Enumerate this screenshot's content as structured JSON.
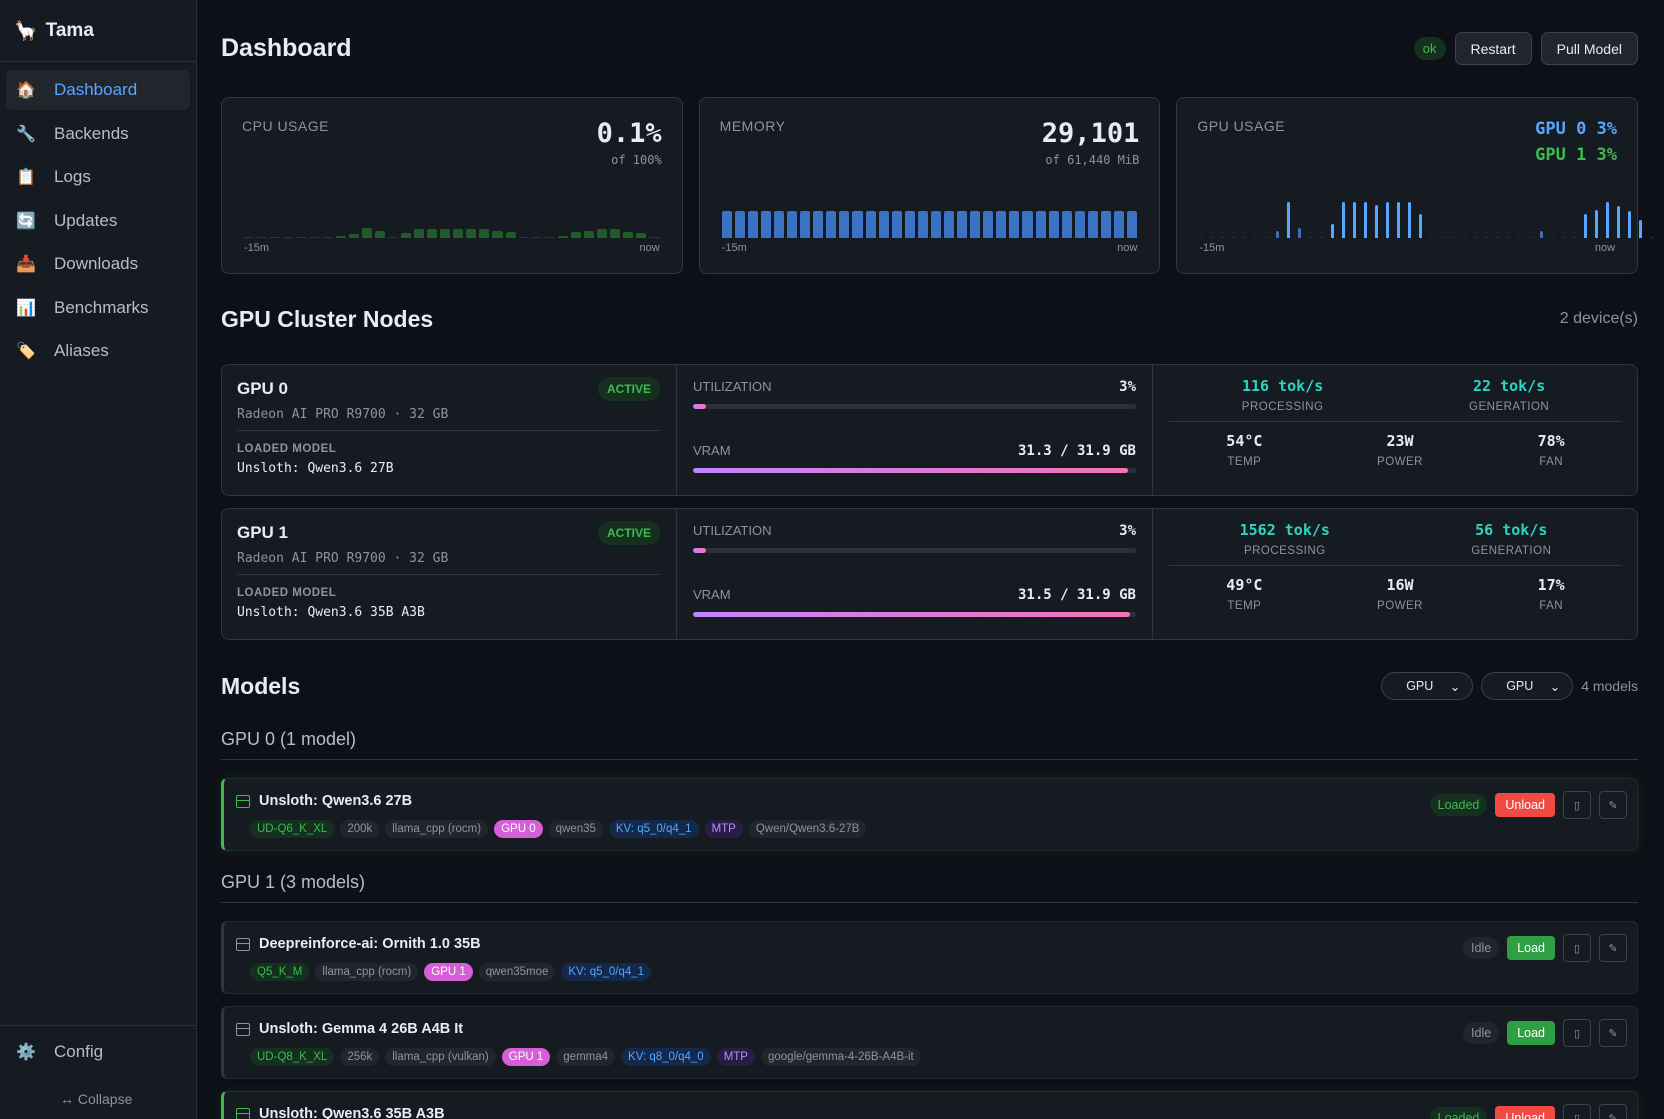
{
  "app": {
    "name": "Tama",
    "logo_icon": "llama-icon"
  },
  "sidebar": {
    "items": [
      {
        "label": "Dashboard",
        "icon": "🏠",
        "active": true
      },
      {
        "label": "Backends",
        "icon": "🔧"
      },
      {
        "label": "Logs",
        "icon": "📋"
      },
      {
        "label": "Updates",
        "icon": "🔄"
      },
      {
        "label": "Downloads",
        "icon": "📥"
      },
      {
        "label": "Benchmarks",
        "icon": "📊"
      },
      {
        "label": "Aliases",
        "icon": "🏷️"
      }
    ],
    "config": {
      "label": "Config",
      "icon": "⚙️"
    },
    "collapse_label": "↔ Collapse"
  },
  "header": {
    "title": "Dashboard",
    "status": "ok",
    "restart_label": "Restart",
    "pull_label": "Pull Model"
  },
  "stats": {
    "cpu": {
      "label": "CPU USAGE",
      "value": "0.1%",
      "sub": "of 100%",
      "axis_start": "-15m",
      "axis_end": "now",
      "history": [
        1,
        1,
        1,
        1,
        1,
        1,
        1,
        2,
        3,
        8,
        6,
        1,
        4,
        7,
        7,
        7,
        7,
        7,
        7,
        6,
        5,
        1,
        1,
        1,
        2,
        5,
        6,
        7,
        7,
        5,
        4,
        1
      ]
    },
    "memory": {
      "label": "MEMORY",
      "value": "29,101",
      "sub": "of 61,440 MiB",
      "axis_start": "-15m",
      "axis_end": "now",
      "history": [
        47,
        47,
        47,
        47,
        47,
        47,
        47,
        47,
        47,
        47,
        47,
        47,
        47,
        47,
        47,
        47,
        47,
        47,
        47,
        47,
        47,
        47,
        47,
        47,
        47,
        47,
        47,
        47,
        47,
        47,
        47,
        47
      ]
    },
    "gpu": {
      "label": "GPU USAGE",
      "gpu0": "GPU 0 3%",
      "gpu1": "GPU 1 3%",
      "axis_start": "-15m",
      "axis_end": "now",
      "history": [
        1,
        1,
        1,
        1,
        1,
        1,
        1,
        7,
        38,
        11,
        1,
        1,
        15,
        38,
        38,
        38,
        35,
        38,
        38,
        38,
        25,
        1,
        1,
        1,
        1,
        1,
        1,
        1,
        1,
        1,
        1,
        7,
        1,
        1,
        1,
        25,
        30,
        38,
        34,
        28,
        19,
        1
      ]
    }
  },
  "cluster": {
    "title": "GPU Cluster Nodes",
    "count": "2 device(s)",
    "nodes": [
      {
        "name": "GPU 0",
        "status": "ACTIVE",
        "device": "Radeon AI PRO R9700 · 32 GB",
        "loaded_label": "LOADED MODEL",
        "model": "Unsloth: Qwen3.6 27B",
        "util_label": "UTILIZATION",
        "util": "3%",
        "util_frac": 0.03,
        "vram_label": "VRAM",
        "vram": "31.3 / 31.9 GB",
        "vram_frac": 0.981,
        "processing": "116 tok/s",
        "processing_label": "PROCESSING",
        "generation": "22 tok/s",
        "generation_label": "GENERATION",
        "temp": "54°C",
        "temp_label": "TEMP",
        "power": "23W",
        "power_label": "POWER",
        "fan": "78%",
        "fan_label": "FAN"
      },
      {
        "name": "GPU 1",
        "status": "ACTIVE",
        "device": "Radeon AI PRO R9700 · 32 GB",
        "loaded_label": "LOADED MODEL",
        "model": "Unsloth: Qwen3.6 35B A3B",
        "util_label": "UTILIZATION",
        "util": "3%",
        "util_frac": 0.03,
        "vram_label": "VRAM",
        "vram": "31.5 / 31.9 GB",
        "vram_frac": 0.987,
        "processing": "1562 tok/s",
        "processing_label": "PROCESSING",
        "generation": "56 tok/s",
        "generation_label": "GENERATION",
        "temp": "49°C",
        "temp_label": "TEMP",
        "power": "16W",
        "power_label": "POWER",
        "fan": "17%",
        "fan_label": "FAN"
      }
    ]
  },
  "models": {
    "title": "Models",
    "filter1": "GPU",
    "filter2": "GPU",
    "count": "4 models",
    "groups": [
      {
        "title": "GPU 0 (1 model)",
        "items": [
          {
            "name": "Unsloth: Qwen3.6 27B",
            "state": "Loaded",
            "action": "Unload",
            "tags": [
              {
                "t": "UD-Q6_K_XL",
                "k": "green"
              },
              {
                "t": "200k",
                "k": ""
              },
              {
                "t": "llama_cpp (rocm)",
                "k": ""
              },
              {
                "t": "GPU 0",
                "k": "pink"
              },
              {
                "t": "qwen35",
                "k": ""
              },
              {
                "t": "KV: q5_0/q4_1",
                "k": "blue"
              },
              {
                "t": "MTP",
                "k": "purple"
              },
              {
                "t": "Qwen/Qwen3.6-27B",
                "k": ""
              }
            ]
          }
        ]
      },
      {
        "title": "GPU 1 (3 models)",
        "items": [
          {
            "name": "Deepreinforce-ai: Ornith 1.0 35B",
            "state": "Idle",
            "action": "Load",
            "tags": [
              {
                "t": "Q5_K_M",
                "k": "green"
              },
              {
                "t": "llama_cpp (rocm)",
                "k": ""
              },
              {
                "t": "GPU 1",
                "k": "pink"
              },
              {
                "t": "qwen35moe",
                "k": ""
              },
              {
                "t": "KV: q5_0/q4_1",
                "k": "blue"
              }
            ]
          },
          {
            "name": "Unsloth: Gemma 4 26B A4B It",
            "state": "Idle",
            "action": "Load",
            "tags": [
              {
                "t": "UD-Q8_K_XL",
                "k": "green"
              },
              {
                "t": "256k",
                "k": ""
              },
              {
                "t": "llama_cpp (vulkan)",
                "k": ""
              },
              {
                "t": "GPU 1",
                "k": "pink"
              },
              {
                "t": "gemma4",
                "k": ""
              },
              {
                "t": "KV: q8_0/q4_0",
                "k": "blue"
              },
              {
                "t": "MTP",
                "k": "purple"
              },
              {
                "t": "google/gemma-4-26B-A4B-it",
                "k": ""
              }
            ]
          },
          {
            "name": "Unsloth: Qwen3.6 35B A3B",
            "state": "Loaded",
            "action": "Unload",
            "tags": []
          }
        ]
      }
    ]
  },
  "colors": {
    "cpu_bar": "#1f5c2a",
    "cpu_bar_dim": "#24302a",
    "mem_bar": "#3a72c4",
    "gpu0": "#58a6ff",
    "gpu1": "#3fb950"
  }
}
